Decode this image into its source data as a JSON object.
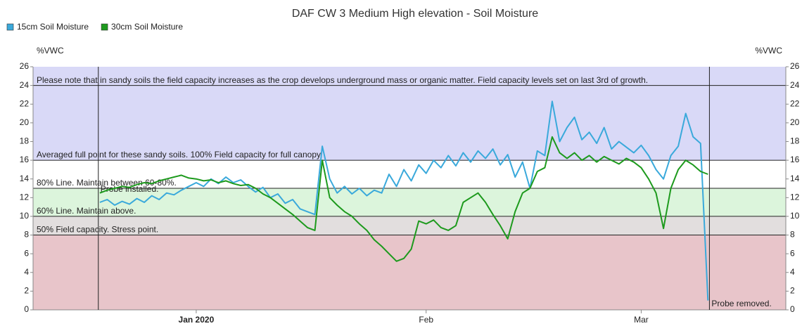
{
  "chart_data": {
    "type": "line",
    "title": "DAF CW 3 Medium High elevation - Soil Moisture",
    "y_label": "%VWC",
    "y2_label": "%VWC",
    "x": [
      -13,
      -12,
      -11,
      -10,
      -9,
      -8,
      -7,
      -6,
      -5,
      -4,
      -3,
      -2,
      -1,
      0,
      1,
      2,
      3,
      4,
      5,
      6,
      7,
      8,
      9,
      10,
      11,
      12,
      13,
      14,
      15,
      16,
      17,
      18,
      19,
      20,
      21,
      22,
      23,
      24,
      25,
      26,
      27,
      28,
      29,
      30,
      31,
      32,
      33,
      34,
      35,
      36,
      37,
      38,
      39,
      40,
      41,
      42,
      43,
      44,
      45,
      46,
      47,
      48,
      49,
      50,
      51,
      52,
      53,
      54,
      55,
      56,
      57,
      58,
      59,
      60,
      61,
      62,
      63,
      64,
      65,
      66,
      67,
      68,
      69
    ],
    "series": [
      {
        "name": "15cm Soil Moisture",
        "color": "#3aa9db",
        "values": [
          11.5,
          11.8,
          11.2,
          11.6,
          11.3,
          11.9,
          11.5,
          12.2,
          11.8,
          12.5,
          12.3,
          12.8,
          13.2,
          13.6,
          13.2,
          14.0,
          13.5,
          14.2,
          13.6,
          13.9,
          13.2,
          12.6,
          13.1,
          12.0,
          12.4,
          11.4,
          11.8,
          10.8,
          10.5,
          10.2,
          17.5,
          14.0,
          12.5,
          13.2,
          12.4,
          13.0,
          12.2,
          12.8,
          12.5,
          14.5,
          13.2,
          15.0,
          13.8,
          15.5,
          14.6,
          16.0,
          15.2,
          16.5,
          15.4,
          16.8,
          15.8,
          17.0,
          16.2,
          17.2,
          15.5,
          16.6,
          14.2,
          15.8,
          13.0,
          17.0,
          16.5,
          22.3,
          18.0,
          19.5,
          20.6,
          18.2,
          19.0,
          17.8,
          19.5,
          17.2,
          18.0,
          17.4,
          16.8,
          17.6,
          16.5,
          15.0,
          14.0,
          16.5,
          17.5,
          21.0,
          18.5,
          17.8,
          1.0
        ]
      },
      {
        "name": "30cm Soil Moisture",
        "color": "#1d9a1d",
        "values": [
          12.5,
          12.8,
          13.0,
          13.2,
          13.1,
          13.4,
          13.6,
          13.5,
          13.8,
          14.0,
          14.2,
          14.4,
          14.1,
          14.0,
          13.8,
          13.9,
          13.6,
          13.8,
          13.5,
          13.3,
          13.4,
          13.0,
          12.4,
          12.0,
          11.4,
          10.8,
          10.2,
          9.5,
          8.8,
          8.5,
          16.0,
          12.0,
          11.2,
          10.5,
          10.0,
          9.2,
          8.5,
          7.5,
          6.8,
          6.0,
          5.2,
          5.5,
          6.5,
          9.5,
          9.2,
          9.6,
          8.8,
          8.5,
          9.0,
          11.5,
          12.0,
          12.5,
          11.5,
          10.2,
          9.0,
          7.6,
          10.5,
          12.5,
          13.0,
          14.8,
          15.2,
          18.5,
          16.8,
          16.2,
          16.8,
          16.0,
          16.5,
          15.8,
          16.4,
          16.0,
          15.6,
          16.2,
          15.8,
          15.2,
          14.0,
          12.5,
          8.7,
          13.0,
          15.0,
          16.0,
          15.5,
          14.8,
          14.5
        ]
      }
    ],
    "xlim": [
      -22,
      79.5
    ],
    "xticks": [
      {
        "value": 0,
        "label": "Jan 2020"
      },
      {
        "value": 31,
        "label": "Feb"
      },
      {
        "value": 60,
        "label": "Mar"
      }
    ],
    "ylim": [
      0,
      26
    ],
    "yticks": [
      0,
      2,
      4,
      6,
      8,
      10,
      12,
      14,
      16,
      18,
      20,
      22,
      24,
      26
    ],
    "y2lim": [
      0,
      26
    ],
    "y2ticks": [
      0,
      2,
      4,
      6,
      8,
      10,
      12,
      14,
      16,
      18,
      20,
      22,
      24,
      26
    ],
    "zones": [
      {
        "from": 16,
        "to": 26,
        "color": "#d9d9f7"
      },
      {
        "from": 13,
        "to": 16,
        "color": "#ffffff"
      },
      {
        "from": 10,
        "to": 13,
        "color": "#dcf5dc"
      },
      {
        "from": 8,
        "to": 10,
        "color": "#e2dede"
      },
      {
        "from": 0,
        "to": 8,
        "color": "#e8c5ca"
      }
    ],
    "threshold_lines": [
      {
        "value": 24,
        "label": "Please note that in sandy soils the field capacity increases as the crop develops underground mass or organic matter. Field capacity levels set on last 3rd of growth."
      },
      {
        "value": 16,
        "label": "Averaged full point for these sandy soils. 100% Field capacity for full canopy."
      },
      {
        "value": 13,
        "label": "80% Line. Maintain between 60-80%."
      },
      {
        "value": 10,
        "label": "60% Line. Maintain above."
      },
      {
        "value": 8,
        "label": "50% Field capacity. Stress point."
      }
    ],
    "annotations": [
      {
        "x": -13.2,
        "label": "Probe installed."
      },
      {
        "x": 69.2,
        "label": "Probe removed."
      }
    ],
    "legend": "top-left"
  }
}
